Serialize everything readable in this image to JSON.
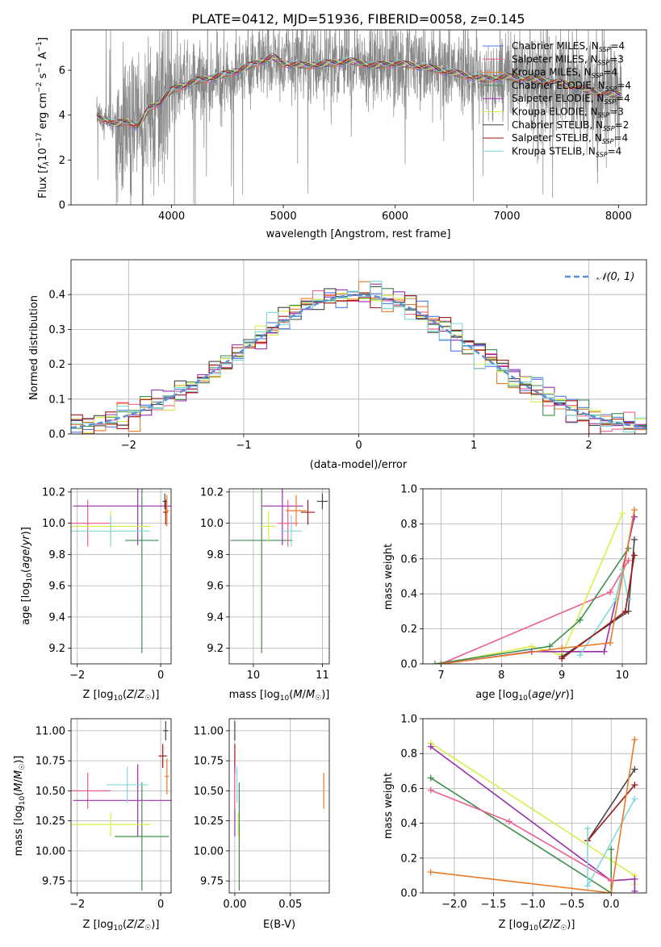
{
  "figure": {
    "title": "PLATE=0412, MJD=51936, FIBERID=0058, z=0.145",
    "series_colors": [
      "#4e79e6",
      "#ef5f8f",
      "#e87b2a",
      "#3f8f4f",
      "#9b2fae",
      "#d8ee4a",
      "#444444",
      "#a01818",
      "#7fd8dc"
    ]
  },
  "chart_data": [
    {
      "id": "spectrum",
      "type": "line",
      "xlabel": "wavelength [Angstrom, rest frame]",
      "ylabel": "Flux [f_λ 10^-17 erg cm^-2 s^-1 A^-1]",
      "xlim": [
        3100,
        8250
      ],
      "ylim": [
        0,
        7.8
      ],
      "xticks": [
        4000,
        5000,
        6000,
        7000,
        8000
      ],
      "yticks": [
        0,
        2,
        4,
        6
      ],
      "grid": false,
      "legend_placement": "top-right",
      "legend": [
        {
          "label": "Chabrier MILES, N_SSP=4",
          "color": "#4e79e6"
        },
        {
          "label": "Salpeter MILES, N_SSP=3",
          "color": "#ef5f8f"
        },
        {
          "label": "Kroupa MILES, N_SSP=4",
          "color": "#e87b2a"
        },
        {
          "label": "Chabrier ELODIE, N_SSP=4",
          "color": "#3f8f4f"
        },
        {
          "label": "Salpeter ELODIE, N_SSP=4",
          "color": "#9b2fae"
        },
        {
          "label": "Kroupa ELODIE, N_SSP=3",
          "color": "#d8ee4a"
        },
        {
          "label": "Chabrier STELIB, N_SSP=2",
          "color": "#444444"
        },
        {
          "label": "Salpeter STELIB, N_SSP=4",
          "color": "#a01818"
        },
        {
          "label": "Kroupa STELIB, N_SSP=4",
          "color": "#7fd8dc"
        }
      ],
      "continuum": [
        [
          3300,
          4.0
        ],
        [
          3400,
          3.8
        ],
        [
          3500,
          3.6
        ],
        [
          3600,
          3.7
        ],
        [
          3700,
          3.5
        ],
        [
          3800,
          4.3
        ],
        [
          3900,
          4.6
        ],
        [
          4000,
          5.1
        ],
        [
          4200,
          5.5
        ],
        [
          4400,
          5.7
        ],
        [
          4600,
          6.0
        ],
        [
          4800,
          6.4
        ],
        [
          4900,
          6.6
        ],
        [
          5000,
          6.3
        ],
        [
          5200,
          6.2
        ],
        [
          5400,
          6.3
        ],
        [
          5600,
          6.4
        ],
        [
          5800,
          6.2
        ],
        [
          6000,
          6.3
        ],
        [
          6200,
          6.2
        ],
        [
          6400,
          6.0
        ],
        [
          6600,
          5.8
        ],
        [
          6800,
          5.6
        ],
        [
          7000,
          5.7
        ],
        [
          7200,
          5.6
        ],
        [
          7400,
          5.5
        ],
        [
          7600,
          5.3
        ],
        [
          7800,
          5.0
        ],
        [
          8000,
          4.9
        ]
      ]
    },
    {
      "id": "residuals",
      "type": "line",
      "xlabel": "(data-model)/error",
      "ylabel": "Normed distribution",
      "xlim": [
        -2.5,
        2.5
      ],
      "ylim": [
        0,
        0.5
      ],
      "xticks": [
        -2,
        -1,
        0,
        1,
        2
      ],
      "yticks": [
        0.0,
        0.1,
        0.2,
        0.3,
        0.4
      ],
      "grid": true,
      "legend_placement": "top-right",
      "legend": [
        {
          "label": "𝒩(0, 1)",
          "color": "#5b8fd6"
        }
      ]
    },
    {
      "id": "age-vs-Z",
      "type": "scatter",
      "xlabel": "Z [log10(Z/Z☉)]",
      "ylabel": "age  [log10(age/yr)]",
      "xlim": [
        -2.15,
        0.25
      ],
      "ylim": [
        9.1,
        10.22
      ],
      "xticks": [
        -2,
        0
      ],
      "yticks": [
        9.2,
        9.4,
        9.6,
        9.8,
        10.0,
        10.2
      ],
      "grid": true,
      "points": [
        {
          "x": -1.75,
          "y": 10.0,
          "xerr": 0.55,
          "yerr": 0.15,
          "color": "#ef5f8f"
        },
        {
          "x": -0.55,
          "y": 10.11,
          "xerr": 1.55,
          "yerr": 0.25,
          "color": "#9b2fae"
        },
        {
          "x": -0.45,
          "y": 9.89,
          "xerr": 0.4,
          "yerr": 0.72,
          "color": "#3f8f4f"
        },
        {
          "x": -1.2,
          "y": 9.98,
          "xerr": 0.95,
          "yerr": 0.1,
          "color": "#d8ee4a"
        },
        {
          "x": -1.2,
          "y": 9.95,
          "xerr": 0.95,
          "yerr": 0.1,
          "color": "#7fd8dc"
        },
        {
          "x": 0.1,
          "y": 10.14,
          "xerr": 0.05,
          "yerr": 0.05,
          "color": "#444444"
        },
        {
          "x": 0.12,
          "y": 10.07,
          "xerr": 0.06,
          "yerr": 0.08,
          "color": "#a01818"
        },
        {
          "x": 0.15,
          "y": 10.08,
          "xerr": 0.05,
          "yerr": 0.1,
          "color": "#e87b2a"
        }
      ]
    },
    {
      "id": "age-vs-mass",
      "type": "scatter",
      "xlabel": "mass [log10(M/M☉)]",
      "ylabel": "",
      "xlim": [
        9.65,
        11.1
      ],
      "ylim": [
        9.1,
        10.22
      ],
      "xticks": [
        10,
        11
      ],
      "yticks": [
        9.2,
        9.4,
        9.6,
        9.8,
        10.0,
        10.2
      ],
      "grid": true,
      "points": [
        {
          "x": 10.12,
          "y": 9.89,
          "xerr": 0.45,
          "yerr": 0.72,
          "color": "#3f8f4f"
        },
        {
          "x": 10.42,
          "y": 10.11,
          "xerr": 0.3,
          "yerr": 0.25,
          "color": "#9b2fae"
        },
        {
          "x": 10.5,
          "y": 10.0,
          "xerr": 0.15,
          "yerr": 0.15,
          "color": "#ef5f8f"
        },
        {
          "x": 10.22,
          "y": 9.98,
          "xerr": 0.1,
          "yerr": 0.1,
          "color": "#d8ee4a"
        },
        {
          "x": 10.55,
          "y": 9.95,
          "xerr": 0.15,
          "yerr": 0.1,
          "color": "#7fd8dc"
        },
        {
          "x": 10.62,
          "y": 10.08,
          "xerr": 0.15,
          "yerr": 0.1,
          "color": "#e87b2a"
        },
        {
          "x": 10.79,
          "y": 10.07,
          "xerr": 0.1,
          "yerr": 0.08,
          "color": "#a01818"
        },
        {
          "x": 11.0,
          "y": 10.14,
          "xerr": 0.08,
          "yerr": 0.05,
          "color": "#444444"
        }
      ]
    },
    {
      "id": "weight-vs-age",
      "type": "line",
      "xlabel": "age  [log10(age/yr)]",
      "ylabel": "mass weight",
      "xlim": [
        6.7,
        10.4
      ],
      "ylim": [
        0,
        1.0
      ],
      "xticks": [
        7,
        8,
        9,
        10
      ],
      "yticks": [
        0.0,
        0.2,
        0.4,
        0.6,
        0.8,
        1.0
      ],
      "grid": true,
      "series": [
        {
          "color": "#ef5f8f",
          "points": [
            [
              7.0,
              0.0
            ],
            [
              9.8,
              0.41
            ],
            [
              10.1,
              0.59
            ]
          ]
        },
        {
          "color": "#d8ee4a",
          "points": [
            [
              7.0,
              0.0
            ],
            [
              8.5,
              0.1
            ],
            [
              9.0,
              0.05
            ],
            [
              10.0,
              0.86
            ]
          ]
        },
        {
          "color": "#3f8f4f",
          "points": [
            [
              6.9,
              0.0
            ],
            [
              8.8,
              0.1
            ],
            [
              9.3,
              0.25
            ],
            [
              10.1,
              0.66
            ]
          ]
        },
        {
          "color": "#9b2fae",
          "points": [
            [
              7.0,
              0.0
            ],
            [
              8.5,
              0.07
            ],
            [
              9.7,
              0.07
            ],
            [
              10.2,
              0.84
            ]
          ]
        },
        {
          "color": "#444444",
          "points": [
            [
              9.0,
              0.04
            ],
            [
              10.1,
              0.3
            ],
            [
              10.2,
              0.71
            ]
          ]
        },
        {
          "color": "#7fd8dc",
          "points": [
            [
              9.3,
              0.05
            ],
            [
              9.9,
              0.37
            ],
            [
              10.0,
              0.54
            ],
            [
              10.1,
              0.37
            ]
          ]
        },
        {
          "color": "#a01818",
          "points": [
            [
              9.0,
              0.03
            ],
            [
              10.05,
              0.3
            ],
            [
              10.2,
              0.62
            ]
          ]
        },
        {
          "color": "#e87b2a",
          "points": [
            [
              7.0,
              0.0
            ],
            [
              9.0,
              0.09
            ],
            [
              9.8,
              0.12
            ],
            [
              10.2,
              0.88
            ]
          ]
        }
      ]
    },
    {
      "id": "mass-vs-Z",
      "type": "scatter",
      "xlabel": "Z [log10(Z/Z☉)]",
      "ylabel": "mass [log10(M/M☉)]",
      "xlim": [
        -2.15,
        0.25
      ],
      "ylim": [
        9.65,
        11.1
      ],
      "xticks": [
        -2,
        0
      ],
      "yticks": [
        9.75,
        10.0,
        10.25,
        10.5,
        10.75,
        11.0
      ],
      "grid": true,
      "points": [
        {
          "x": -1.75,
          "y": 10.5,
          "xerr": 0.55,
          "yerr": 0.15,
          "color": "#ef5f8f"
        },
        {
          "x": -0.55,
          "y": 10.42,
          "xerr": 1.55,
          "yerr": 0.3,
          "color": "#9b2fae"
        },
        {
          "x": -0.45,
          "y": 10.12,
          "xerr": 0.65,
          "yerr": 0.45,
          "color": "#3f8f4f"
        },
        {
          "x": -1.2,
          "y": 10.22,
          "xerr": 0.95,
          "yerr": 0.1,
          "color": "#d8ee4a"
        },
        {
          "x": -0.8,
          "y": 10.55,
          "xerr": 0.5,
          "yerr": 0.15,
          "color": "#7fd8dc"
        },
        {
          "x": 0.05,
          "y": 10.79,
          "xerr": 0.1,
          "yerr": 0.1,
          "color": "#a01818"
        },
        {
          "x": 0.12,
          "y": 11.0,
          "xerr": 0.06,
          "yerr": 0.08,
          "color": "#444444"
        },
        {
          "x": 0.15,
          "y": 10.62,
          "xerr": 0.05,
          "yerr": 0.15,
          "color": "#e87b2a"
        }
      ]
    },
    {
      "id": "mass-vs-ebv",
      "type": "scatter",
      "xlabel": "E(B-V)",
      "ylabel": "",
      "xlim": [
        -0.005,
        0.085
      ],
      "ylim": [
        9.65,
        11.1
      ],
      "xticks": [
        0.0,
        0.05
      ],
      "yticks": [
        9.75,
        10.0,
        10.25,
        10.5,
        10.75,
        11.0
      ],
      "grid": true,
      "points": [
        {
          "x": 0.0,
          "y": 11.0,
          "yerr": 0.08,
          "color": "#444444"
        },
        {
          "x": 0.0,
          "y": 10.79,
          "yerr": 0.1,
          "color": "#a01818"
        },
        {
          "x": 0.0,
          "y": 10.42,
          "yerr": 0.3,
          "color": "#9b2fae"
        },
        {
          "x": 0.0,
          "y": 10.5,
          "yerr": 0.15,
          "color": "#ef5f8f"
        },
        {
          "x": 0.002,
          "y": 10.55,
          "yerr": 0.15,
          "color": "#7fd8dc"
        },
        {
          "x": 0.003,
          "y": 10.22,
          "yerr": 0.1,
          "color": "#d8ee4a"
        },
        {
          "x": 0.004,
          "y": 10.12,
          "yerr": 0.45,
          "color": "#3f8f4f"
        },
        {
          "x": 0.08,
          "y": 10.5,
          "yerr": 0.15,
          "color": "#e87b2a"
        }
      ]
    },
    {
      "id": "weight-vs-Z",
      "type": "line",
      "xlabel": "Z [log10(Z/Z☉)]",
      "ylabel": "mass weight",
      "xlim": [
        -2.4,
        0.45
      ],
      "ylim": [
        0,
        1.0
      ],
      "xticks": [
        -2.0,
        -1.5,
        -1.0,
        -0.5,
        0.0
      ],
      "yticks": [
        0.0,
        0.2,
        0.4,
        0.6,
        0.8,
        1.0
      ],
      "grid": true,
      "series": [
        {
          "color": "#d8ee4a",
          "points": [
            [
              -2.3,
              0.86
            ],
            [
              0.3,
              0.1
            ],
            [
              0.3,
              0.05
            ]
          ]
        },
        {
          "color": "#9b2fae",
          "points": [
            [
              -2.3,
              0.84
            ],
            [
              0.0,
              0.07
            ],
            [
              0.3,
              0.08
            ],
            [
              0.3,
              0.01
            ]
          ]
        },
        {
          "color": "#3f8f4f",
          "points": [
            [
              -2.3,
              0.66
            ],
            [
              0.0,
              0.0
            ],
            [
              0.0,
              0.25
            ]
          ]
        },
        {
          "color": "#ef5f8f",
          "points": [
            [
              -2.3,
              0.59
            ],
            [
              -1.3,
              0.41
            ],
            [
              0.0,
              0.07
            ]
          ]
        },
        {
          "color": "#444444",
          "points": [
            [
              -0.3,
              0.3
            ],
            [
              0.3,
              0.71
            ]
          ]
        },
        {
          "color": "#a01818",
          "points": [
            [
              -0.3,
              0.3
            ],
            [
              0.3,
              0.62
            ]
          ]
        },
        {
          "color": "#7fd8dc",
          "points": [
            [
              -0.3,
              0.37
            ],
            [
              -0.3,
              0.04
            ],
            [
              0.3,
              0.54
            ]
          ]
        },
        {
          "color": "#e87b2a",
          "points": [
            [
              -2.3,
              0.12
            ],
            [
              0.0,
              0.0
            ],
            [
              0.3,
              0.88
            ]
          ]
        }
      ]
    }
  ]
}
